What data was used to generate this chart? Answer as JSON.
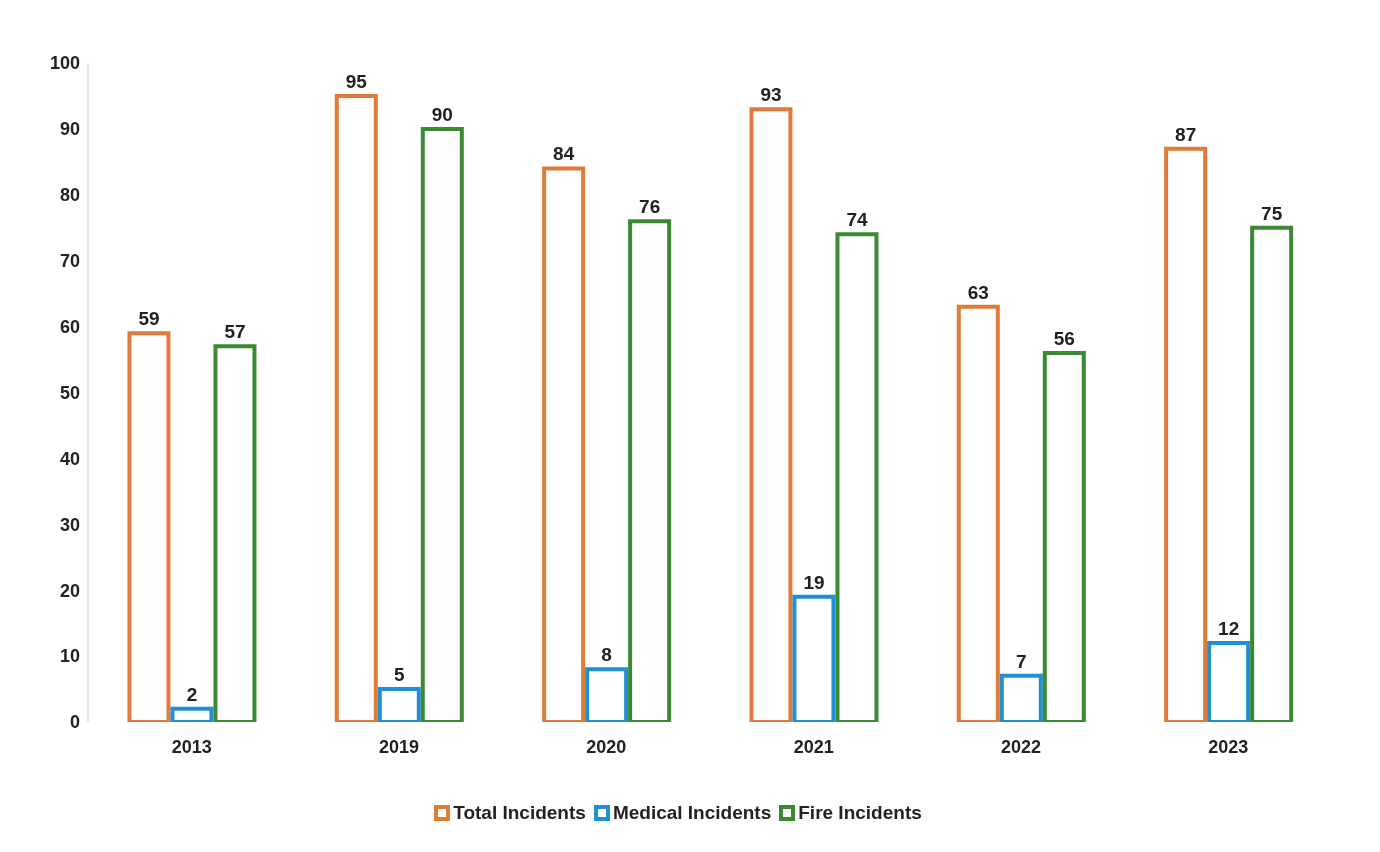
{
  "chart_data": {
    "type": "bar",
    "categories": [
      "2013",
      "2019",
      "2020",
      "2021",
      "2022",
      "2023"
    ],
    "series": [
      {
        "name": "Total Incidents",
        "color": "#e07b39",
        "values": [
          59,
          95,
          84,
          93,
          63,
          87
        ]
      },
      {
        "name": "Medical Incidents",
        "color": "#1f8fd6",
        "values": [
          2,
          5,
          8,
          19,
          7,
          12
        ]
      },
      {
        "name": "Fire Incidents",
        "color": "#3a8a34",
        "values": [
          57,
          90,
          76,
          74,
          56,
          75
        ]
      }
    ],
    "ylim": [
      0,
      100
    ],
    "yticks": [
      0,
      10,
      20,
      30,
      40,
      50,
      60,
      70,
      80,
      90,
      100
    ],
    "grid": false,
    "legend": "bottom",
    "data_labels": true
  }
}
